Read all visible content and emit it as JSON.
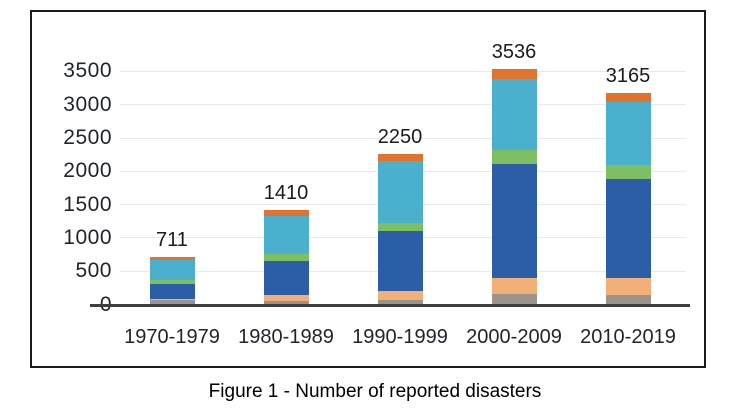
{
  "figure": {
    "caption": "Figure 1 - Number of reported disasters"
  },
  "chart_data": {
    "type": "bar",
    "stacked": true,
    "title": "",
    "xlabel": "",
    "ylabel": "",
    "categories": [
      "1970-1979",
      "1980-1989",
      "1990-1999",
      "2000-2009",
      "2010-2019"
    ],
    "totals": [
      711,
      1410,
      2250,
      3536,
      3165
    ],
    "bar_labels": [
      "711",
      "1410",
      "2250",
      "3536",
      "3165"
    ],
    "series": [
      {
        "name": "segment-gray",
        "color": "#9a948a",
        "values": [
          60,
          45,
          60,
          155,
          140
        ]
      },
      {
        "name": "segment-peach",
        "color": "#f2b078",
        "values": [
          20,
          85,
          130,
          230,
          250
        ]
      },
      {
        "name": "segment-dark-blue",
        "color": "#2b5ea7",
        "values": [
          225,
          510,
          900,
          1720,
          1490
        ]
      },
      {
        "name": "segment-green",
        "color": "#7fbf63",
        "values": [
          55,
          105,
          120,
          215,
          210
        ]
      },
      {
        "name": "segment-cyan",
        "color": "#4bafce",
        "values": [
          305,
          575,
          930,
          1060,
          950
        ]
      },
      {
        "name": "segment-orange",
        "color": "#e0742f",
        "values": [
          46,
          90,
          110,
          156,
          125
        ]
      }
    ],
    "y_axis": {
      "ticks": [
        0,
        500,
        1000,
        1500,
        2000,
        2500,
        3000,
        3500
      ],
      "min": 0,
      "max": 3500
    },
    "grid": true,
    "legend": "none"
  },
  "colors": {
    "background": "#ffffff",
    "frame_border": "#1a1a1a",
    "axis_line": "#3e3e3e",
    "gridline": "#e9e9e9",
    "text": "#20242c"
  }
}
